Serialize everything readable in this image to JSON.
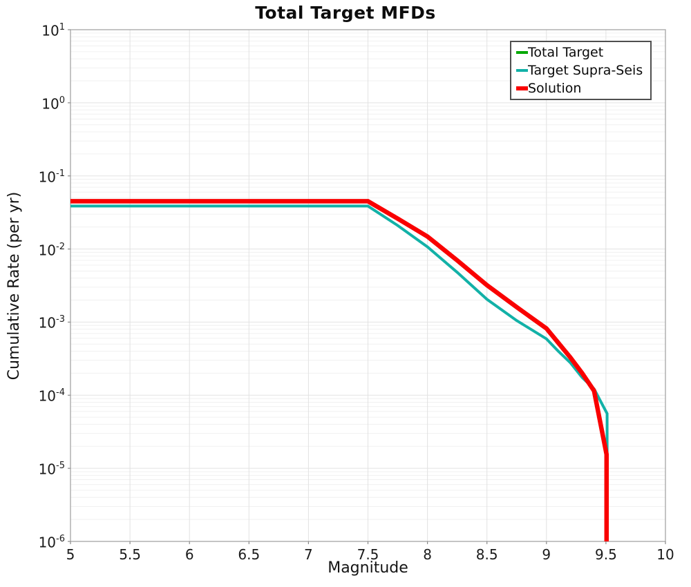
{
  "title": "Total Target MFDs",
  "x_axis": {
    "label": "Magnitude",
    "ticks": [
      "5",
      "5.5",
      "6",
      "6.5",
      "7",
      "7.5",
      "8",
      "8.5",
      "9",
      "9.5",
      "10"
    ]
  },
  "y_axis": {
    "label": "Cumulative Rate (per yr)",
    "tick_base": "10",
    "tick_exponents": [
      "1",
      "0",
      "-1",
      "-2",
      "-3",
      "-4",
      "-5",
      "-6"
    ]
  },
  "legend": {
    "position": "top-right",
    "items": [
      {
        "label": "Total Target",
        "color": "#00a800",
        "thickness": 4
      },
      {
        "label": "Target Supra-Seis",
        "color": "#12b1a7",
        "thickness": 4
      },
      {
        "label": "Solution",
        "color": "#f90000",
        "thickness": 6
      }
    ]
  },
  "chart_data": {
    "type": "line",
    "title": "Total Target MFDs",
    "xlabel": "Magnitude",
    "ylabel": "Cumulative Rate (per yr)",
    "xlim": [
      5,
      10
    ],
    "ylim": [
      1e-06,
      10
    ],
    "y_scale": "log10",
    "x_ticks": [
      5,
      5.5,
      6,
      6.5,
      7,
      7.5,
      8,
      8.5,
      9,
      9.5,
      10
    ],
    "y_tick_exponents": [
      1,
      0,
      -1,
      -2,
      -3,
      -4,
      -5,
      -6
    ],
    "grid": {
      "vertical_major_step": 0.5,
      "horizontal_major": "each decade",
      "horizontal_minor": "log 2-9 per decade"
    },
    "legend_position": "top-right",
    "note": "Total Target curve coincides exactly with Solution and is hidden beneath the red line",
    "series": [
      {
        "name": "Total Target",
        "color": "#00a800",
        "stroke_width": 4,
        "points": [
          [
            5.0,
            0.045
          ],
          [
            7.5,
            0.045
          ],
          [
            7.75,
            0.026
          ],
          [
            8.0,
            0.0148
          ],
          [
            8.25,
            0.007
          ],
          [
            8.5,
            0.0032
          ],
          [
            8.75,
            0.0016
          ],
          [
            9.0,
            0.00082
          ],
          [
            9.1,
            0.00052
          ],
          [
            9.2,
            0.00033
          ],
          [
            9.3,
            0.0002
          ],
          [
            9.4,
            0.000115
          ],
          [
            9.505,
            1.55e-05
          ],
          [
            9.505,
            1e-06
          ]
        ]
      },
      {
        "name": "Target Supra-Seis",
        "color": "#12b1a7",
        "stroke_width": 4,
        "points": [
          [
            5.0,
            0.0387
          ],
          [
            7.5,
            0.0387
          ],
          [
            7.75,
            0.021
          ],
          [
            8.0,
            0.0107
          ],
          [
            8.25,
            0.0048
          ],
          [
            8.5,
            0.00205
          ],
          [
            8.75,
            0.00105
          ],
          [
            9.0,
            0.00059
          ],
          [
            9.1,
            0.0004
          ],
          [
            9.2,
            0.00028
          ],
          [
            9.3,
            0.000175
          ],
          [
            9.4,
            0.000122
          ],
          [
            9.51,
            5.6e-05
          ],
          [
            9.51,
            1.6e-05
          ]
        ]
      },
      {
        "name": "Solution",
        "color": "#f90000",
        "stroke_width": 6.5,
        "points": [
          [
            5.0,
            0.045
          ],
          [
            7.5,
            0.045
          ],
          [
            7.75,
            0.026
          ],
          [
            8.0,
            0.0148
          ],
          [
            8.25,
            0.007
          ],
          [
            8.5,
            0.0032
          ],
          [
            8.75,
            0.0016
          ],
          [
            9.0,
            0.00082
          ],
          [
            9.1,
            0.00052
          ],
          [
            9.2,
            0.00033
          ],
          [
            9.3,
            0.0002
          ],
          [
            9.4,
            0.000115
          ],
          [
            9.505,
            1.55e-05
          ],
          [
            9.505,
            1e-06
          ]
        ]
      }
    ]
  }
}
